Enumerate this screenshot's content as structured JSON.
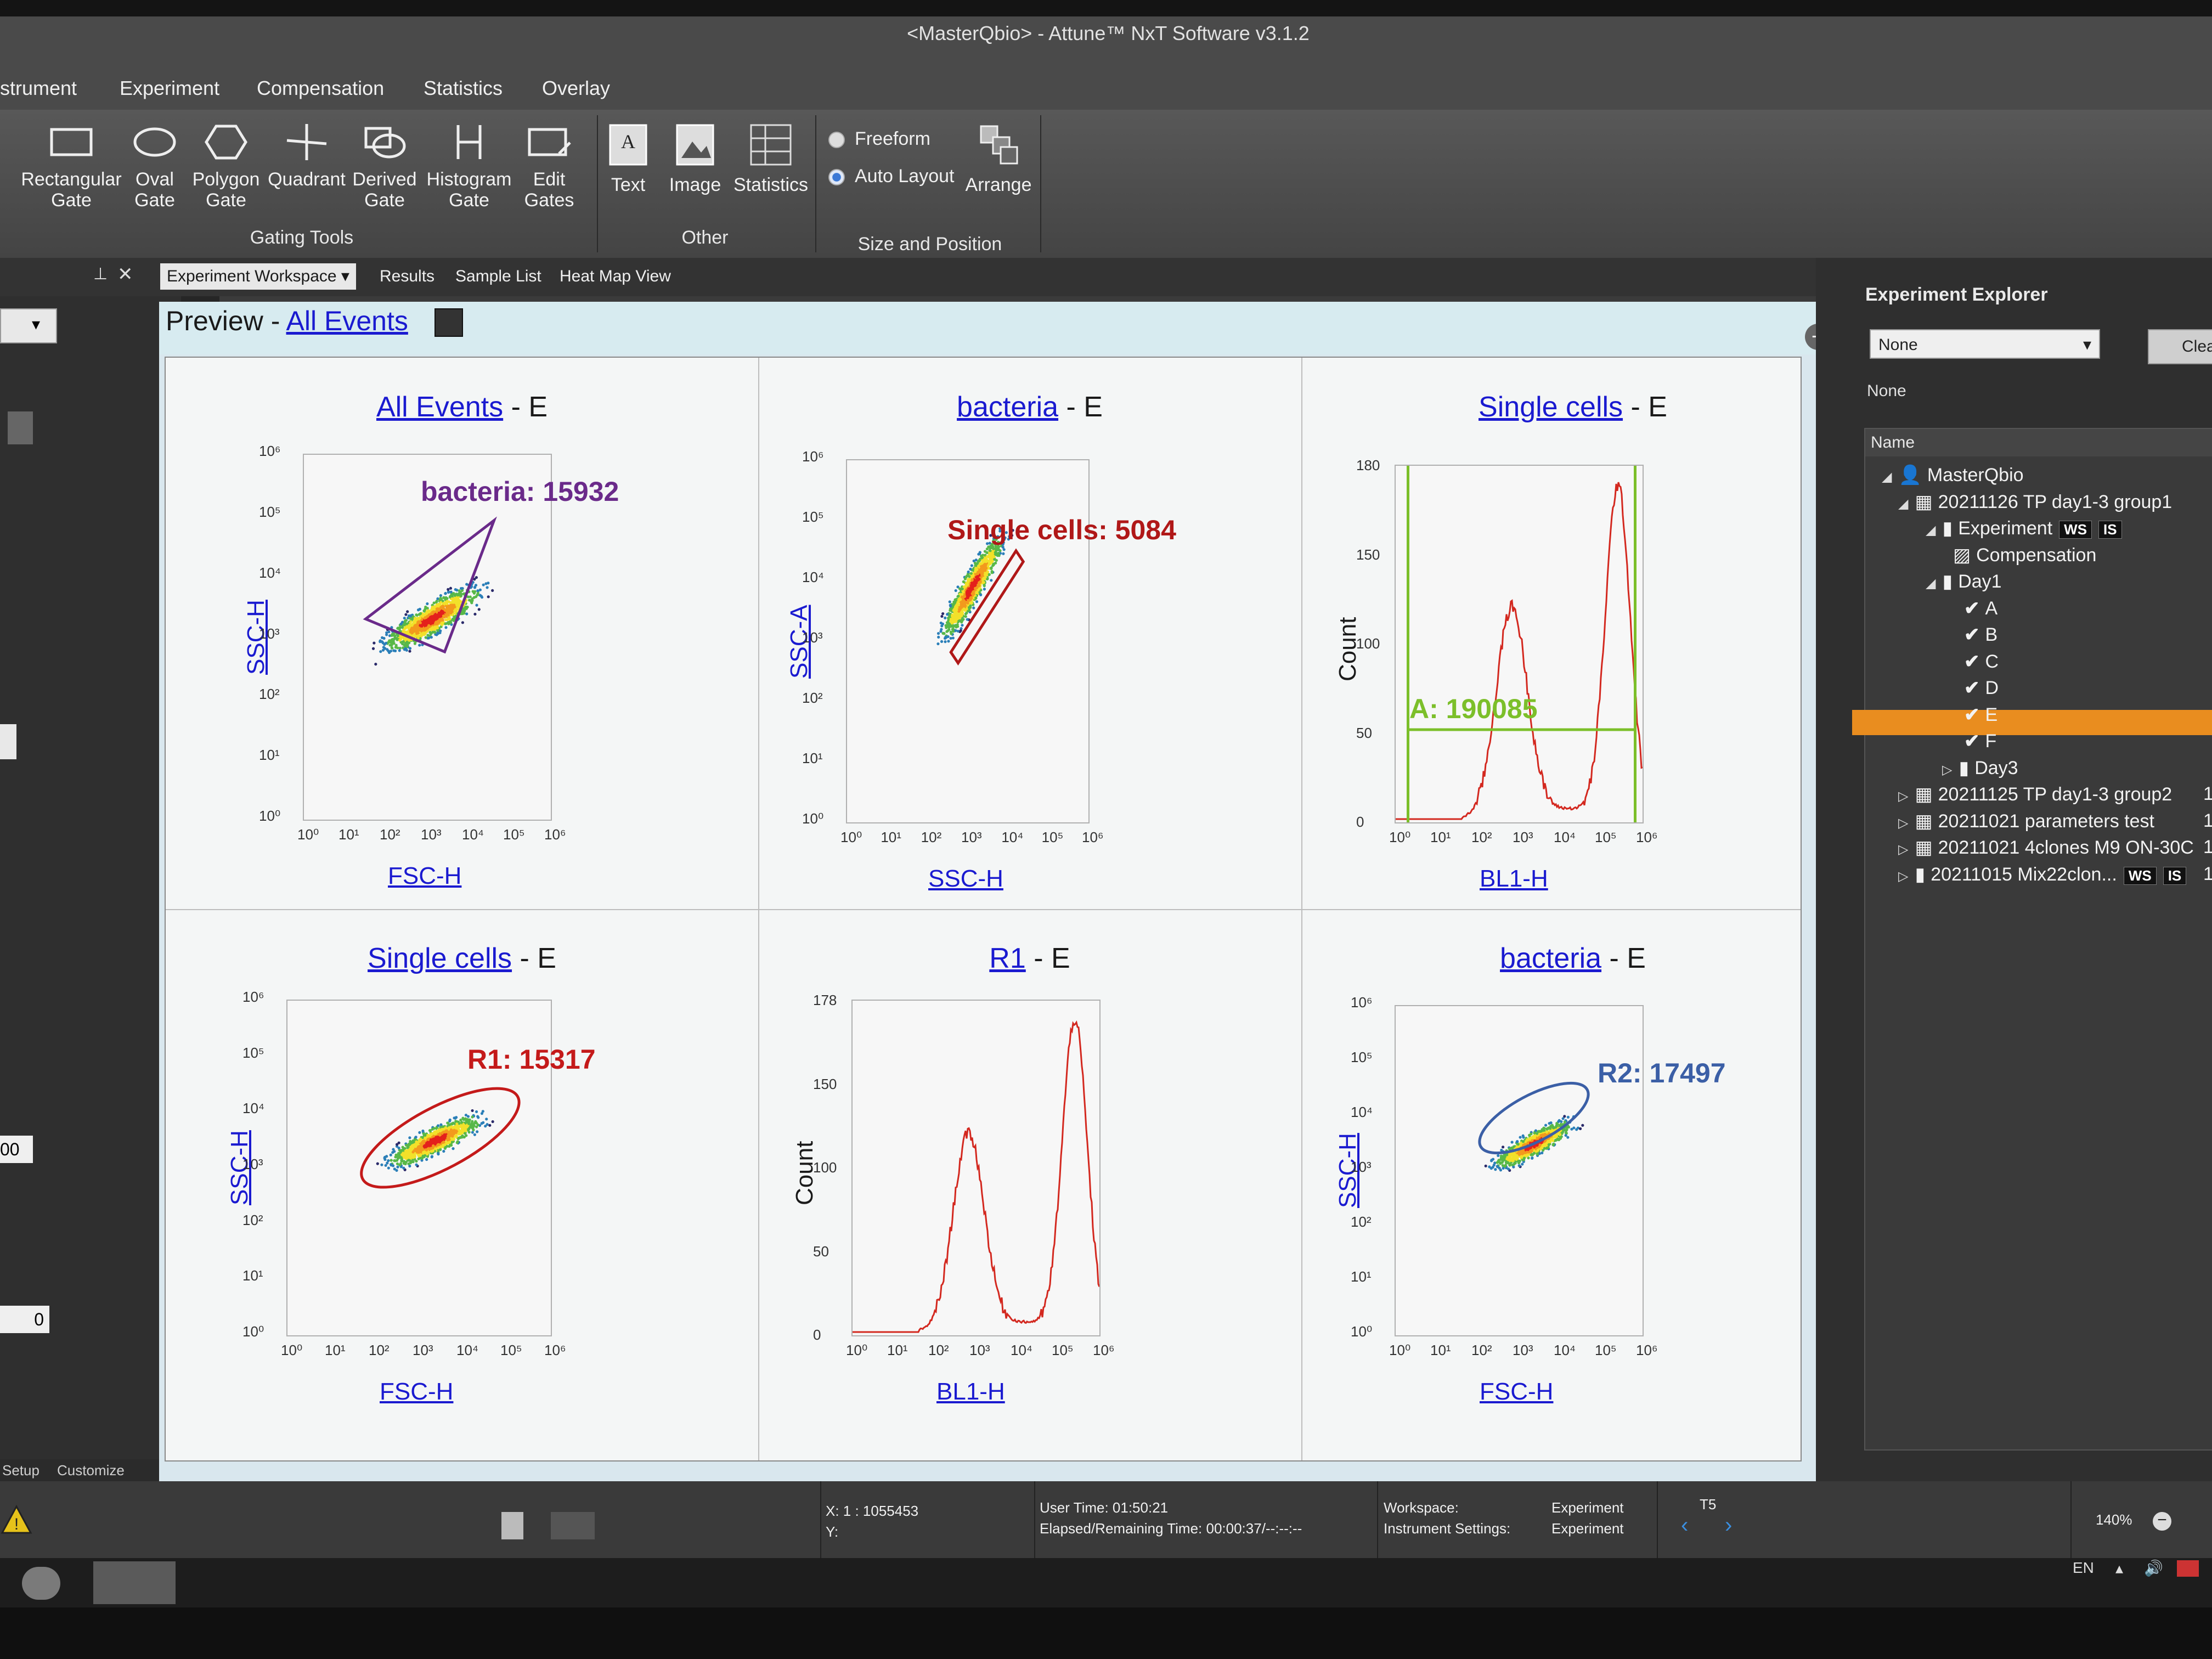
{
  "window": {
    "title": "<MasterQbio> - Attune™ NxT Software v3.1.2"
  },
  "menu": [
    "strument",
    "Experiment",
    "Compensation",
    "Statistics",
    "Overlay"
  ],
  "ribbon": {
    "gating_tools": {
      "group_label": "Gating Tools",
      "buttons": [
        {
          "label1": "Rectangular",
          "label2": "Gate",
          "icon": "rectangle-gate-icon"
        },
        {
          "label1": "Oval",
          "label2": "Gate",
          "icon": "oval-gate-icon"
        },
        {
          "label1": "Polygon",
          "label2": "Gate",
          "icon": "polygon-gate-icon"
        },
        {
          "label1": "Quadrant",
          "label2": "",
          "icon": "quadrant-gate-icon"
        },
        {
          "label1": "Derived",
          "label2": "Gate",
          "icon": "derived-gate-icon"
        },
        {
          "label1": "Histogram",
          "label2": "Gate",
          "icon": "histogram-gate-icon"
        },
        {
          "label1": "Edit",
          "label2": "Gates",
          "icon": "edit-gates-icon"
        }
      ]
    },
    "other": {
      "group_label": "Other",
      "buttons": [
        {
          "label1": "Text",
          "icon": "text-icon"
        },
        {
          "label1": "Image",
          "icon": "image-icon"
        },
        {
          "label1": "Statistics",
          "icon": "statistics-icon"
        }
      ]
    },
    "size_position": {
      "group_label": "Size and Position",
      "freeform": "Freeform",
      "auto_layout": "Auto Layout",
      "selected": "Auto Layout",
      "arrange": "Arrange"
    }
  },
  "tabs": [
    "Experiment Workspace",
    "Results",
    "Sample List",
    "Heat Map View"
  ],
  "active_tab": "Experiment Workspace",
  "preview": {
    "prefix": "Preview - ",
    "link": "All Events"
  },
  "plots": [
    {
      "title_link": "All Events",
      "title_suffix": " - E",
      "x_axis": "FSC-H",
      "y_axis": "SSC-H",
      "type": "density",
      "gate_label": "bacteria: 15932",
      "gate_color": "#6a2a8a",
      "gate_shape": "triangle"
    },
    {
      "title_link": "bacteria",
      "title_suffix": " - E",
      "x_axis": "SSC-H",
      "y_axis": "SSC-A",
      "type": "density",
      "gate_label": "Single cells: 5084",
      "gate_color": "#b01818",
      "gate_shape": "polygon"
    },
    {
      "title_link": "Single cells",
      "title_suffix": " - E",
      "x_axis": "BL1-H",
      "y_axis": "Count",
      "type": "histogram",
      "gate_label": "A: 190085",
      "gate_color": "#7cbf2a",
      "y_ticks": [
        "180",
        "150",
        "100",
        "50",
        "0"
      ]
    },
    {
      "title_link": "Single cells",
      "title_suffix": " - E",
      "x_axis": "FSC-H",
      "y_axis": "SSC-H",
      "type": "density",
      "gate_label": "R1: 15317",
      "gate_color": "#c41a1a",
      "gate_shape": "ellipse"
    },
    {
      "title_link": "R1",
      "title_suffix": " - E",
      "x_axis": "BL1-H",
      "y_axis": "Count",
      "type": "histogram",
      "gate_label": "",
      "y_ticks": [
        "178",
        "150",
        "100",
        "50",
        "0"
      ]
    },
    {
      "title_link": "bacteria",
      "title_suffix": " - E",
      "x_axis": "FSC-H",
      "y_axis": "SSC-H",
      "type": "density",
      "gate_label": "R2: 17497",
      "gate_color": "#3b5fa6",
      "gate_shape": "ellipse"
    }
  ],
  "log_ticks": [
    "10⁰",
    "10¹",
    "10²",
    "10³",
    "10⁴",
    "10⁵",
    "10⁶"
  ],
  "explorer": {
    "title": "Experiment Explorer",
    "select_value": "None",
    "clear_label": "Clea",
    "none_label": "None",
    "tree_header": "Name",
    "tree": [
      {
        "label": "MasterQbio",
        "icon": "user-icon",
        "tri": "◢"
      },
      {
        "label": "20211126 TP day1-3 group1",
        "icon": "grid-icon",
        "tri": "◢"
      },
      {
        "label": "Experiment",
        "icon": "tube-icon",
        "tri": "◢",
        "badges": [
          "WS",
          "IS"
        ]
      },
      {
        "label": "Compensation",
        "icon": "chart-icon"
      },
      {
        "label": "Day1",
        "icon": "tube-icon",
        "tri": "◢"
      },
      {
        "label": "A",
        "icon": "check-icon"
      },
      {
        "label": "B",
        "icon": "check-icon"
      },
      {
        "label": "C",
        "icon": "check-icon"
      },
      {
        "label": "D",
        "icon": "check-icon"
      },
      {
        "label": "E",
        "icon": "check-icon",
        "selected": true
      },
      {
        "label": "F",
        "icon": "check-icon"
      },
      {
        "label": "Day3",
        "icon": "tube-icon",
        "tri": "▷"
      },
      {
        "label": "20211125 TP day1-3 group2",
        "icon": "grid-icon",
        "tri": "▷",
        "trail": "1"
      },
      {
        "label": "20211021 parameters test",
        "icon": "grid-icon",
        "tri": "▷",
        "trail": "1"
      },
      {
        "label": "20211021 4clones M9 ON-30C",
        "icon": "grid-icon",
        "tri": "▷",
        "trail": "1"
      },
      {
        "label": "20211015 Mix22clon...",
        "icon": "tube-icon",
        "tri": "▷",
        "badges": [
          "WS",
          "IS"
        ],
        "trail": "1("
      }
    ]
  },
  "left_panel": {
    "setup": "Setup",
    "customize": "Customize",
    "val1": "00",
    "val2": "0"
  },
  "status": {
    "x_label": "X: 1 : 1055453",
    "y_label": "Y:",
    "user_time": "User Time: 01:50:21",
    "elapsed": "Elapsed/Remaining Time: 00:00:37/--:--:--",
    "workspace_label": "Workspace:",
    "workspace_value": "Experiment",
    "instrument_label": "Instrument Settings:",
    "instrument_value": "Experiment",
    "well": "T5",
    "zoom": "140%"
  },
  "taskbar": {
    "lang": "EN"
  }
}
